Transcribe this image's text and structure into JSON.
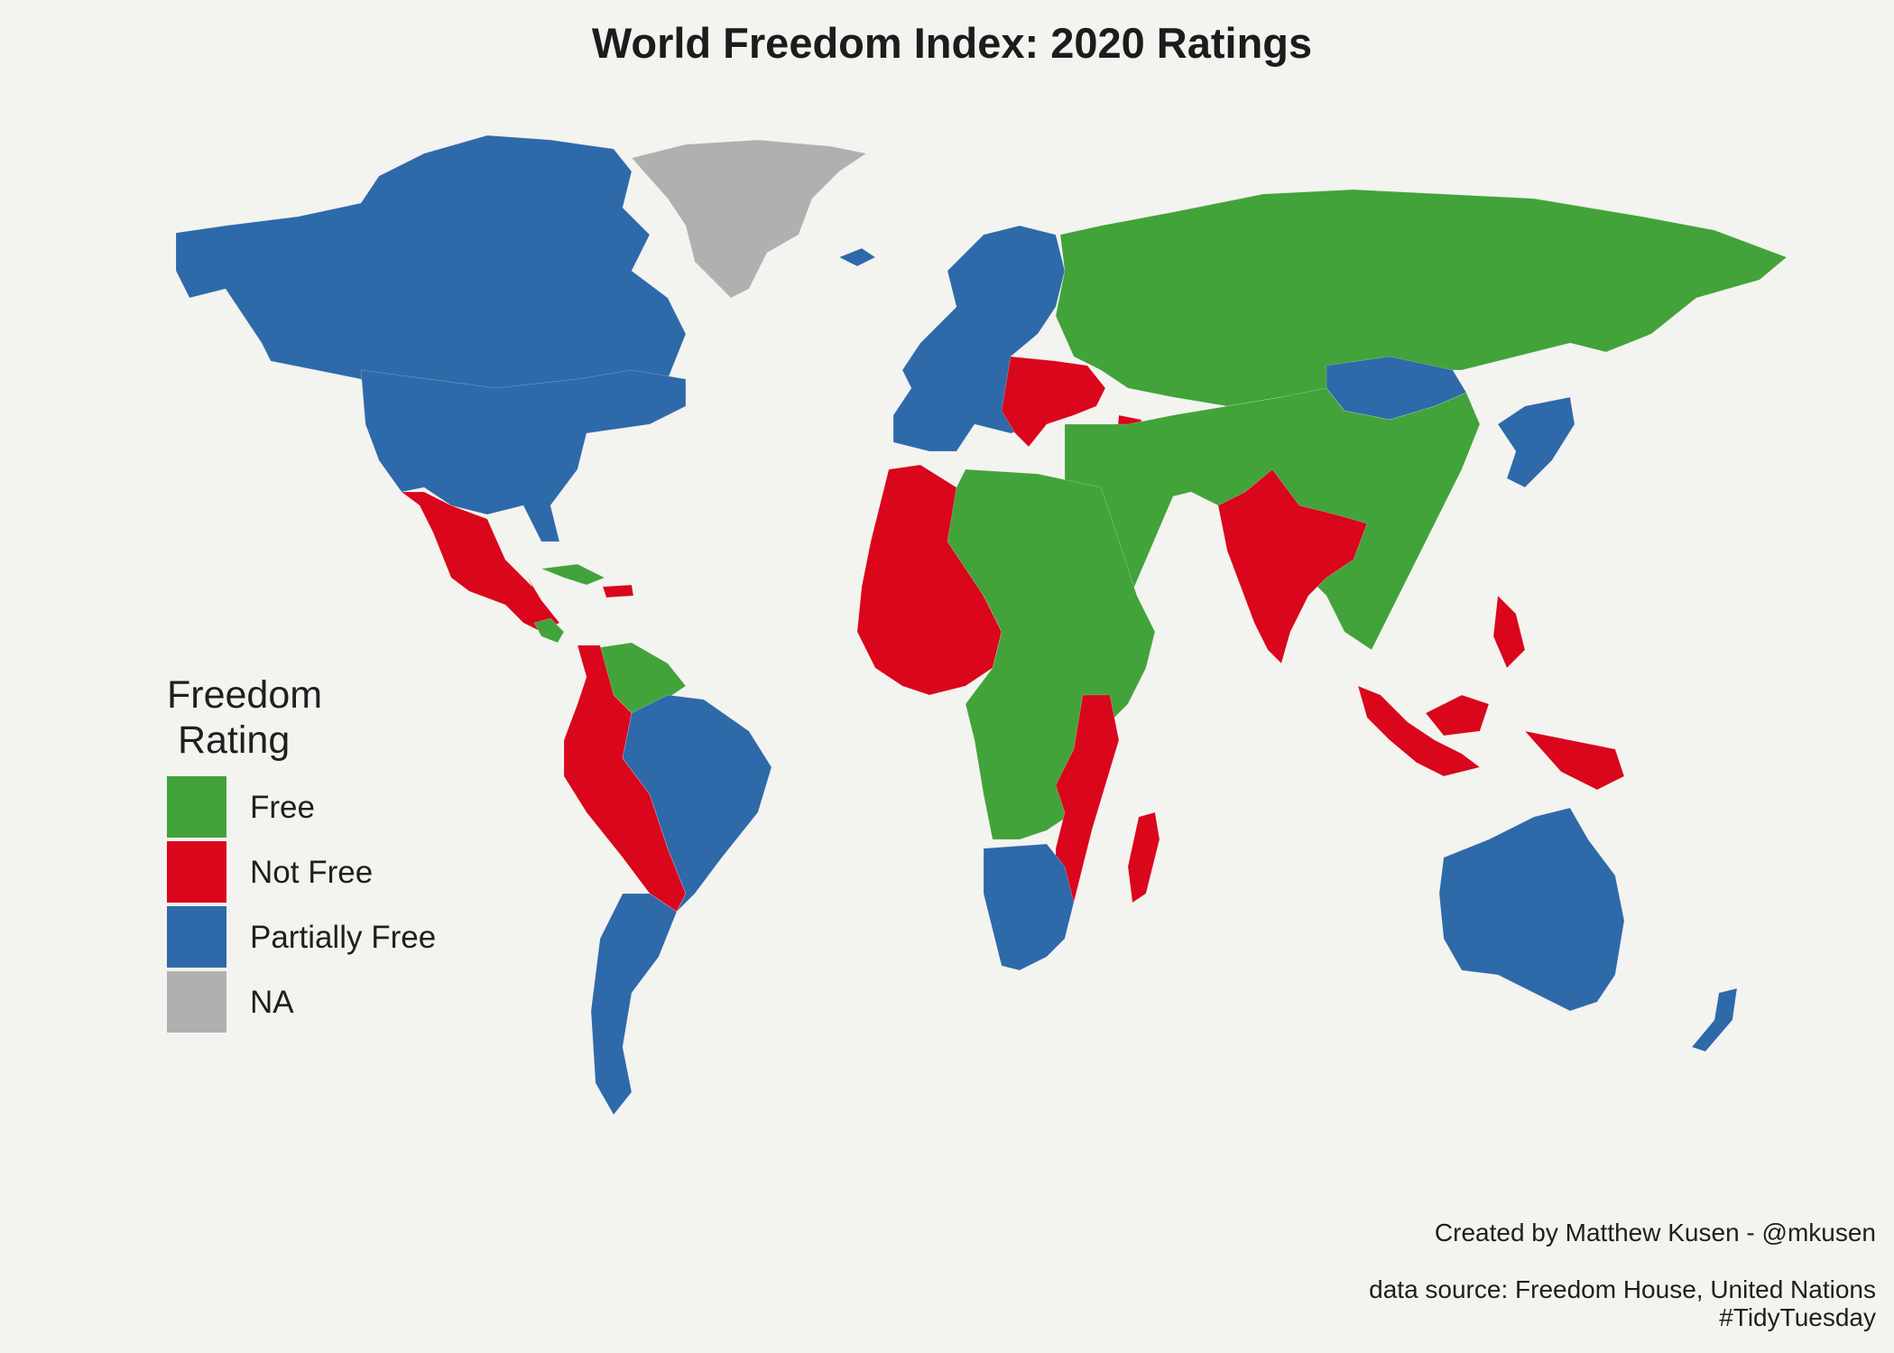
{
  "title": "World Freedom Index: 2020 Ratings",
  "legend": {
    "title": "Freedom\n Rating",
    "items": [
      {
        "label": "Free",
        "color": "#42a33a"
      },
      {
        "label": "Not Free",
        "color": "#d9061c"
      },
      {
        "label": "Partially Free",
        "color": "#2e69a9"
      },
      {
        "label": "NA",
        "color": "#b0b0b0"
      }
    ]
  },
  "caption": {
    "credit": "Created by Matthew Kusen - @mkusen",
    "source": "data source: Freedom House, United Nations",
    "tag": "#TidyTuesday"
  },
  "map": {
    "regions": [
      {
        "name": "canada-north-america",
        "status": "Partially Free"
      },
      {
        "name": "united-states",
        "status": "Partially Free"
      },
      {
        "name": "greenland",
        "status": "NA"
      },
      {
        "name": "mexico-central-america",
        "status": "Not Free"
      },
      {
        "name": "cuba-caribbean",
        "status": "Free"
      },
      {
        "name": "hispaniola",
        "status": "Not Free"
      },
      {
        "name": "costa-rica-panama",
        "status": "Free"
      },
      {
        "name": "venezuela-guyana",
        "status": "Free"
      },
      {
        "name": "colombia-peru-bolivia",
        "status": "Not Free"
      },
      {
        "name": "brazil-southern-cone",
        "status": "Partially Free"
      },
      {
        "name": "iceland-scandinavia-europe",
        "status": "Partially Free"
      },
      {
        "name": "ukraine-balkans-caucasus",
        "status": "Not Free"
      },
      {
        "name": "russia-central-asia",
        "status": "Free"
      },
      {
        "name": "mongolia",
        "status": "Partially Free"
      },
      {
        "name": "china-middle-east",
        "status": "Free"
      },
      {
        "name": "india-bangladesh",
        "status": "Not Free"
      },
      {
        "name": "japan-korea",
        "status": "Partially Free"
      },
      {
        "name": "southeast-asia-indonesia",
        "status": "Not Free"
      },
      {
        "name": "north-africa-central-africa",
        "status": "Free"
      },
      {
        "name": "west-africa",
        "status": "Not Free"
      },
      {
        "name": "east-africa-madagascar",
        "status": "Not Free"
      },
      {
        "name": "southern-africa",
        "status": "Partially Free"
      },
      {
        "name": "australia-new-zealand",
        "status": "Partially Free"
      }
    ]
  }
}
